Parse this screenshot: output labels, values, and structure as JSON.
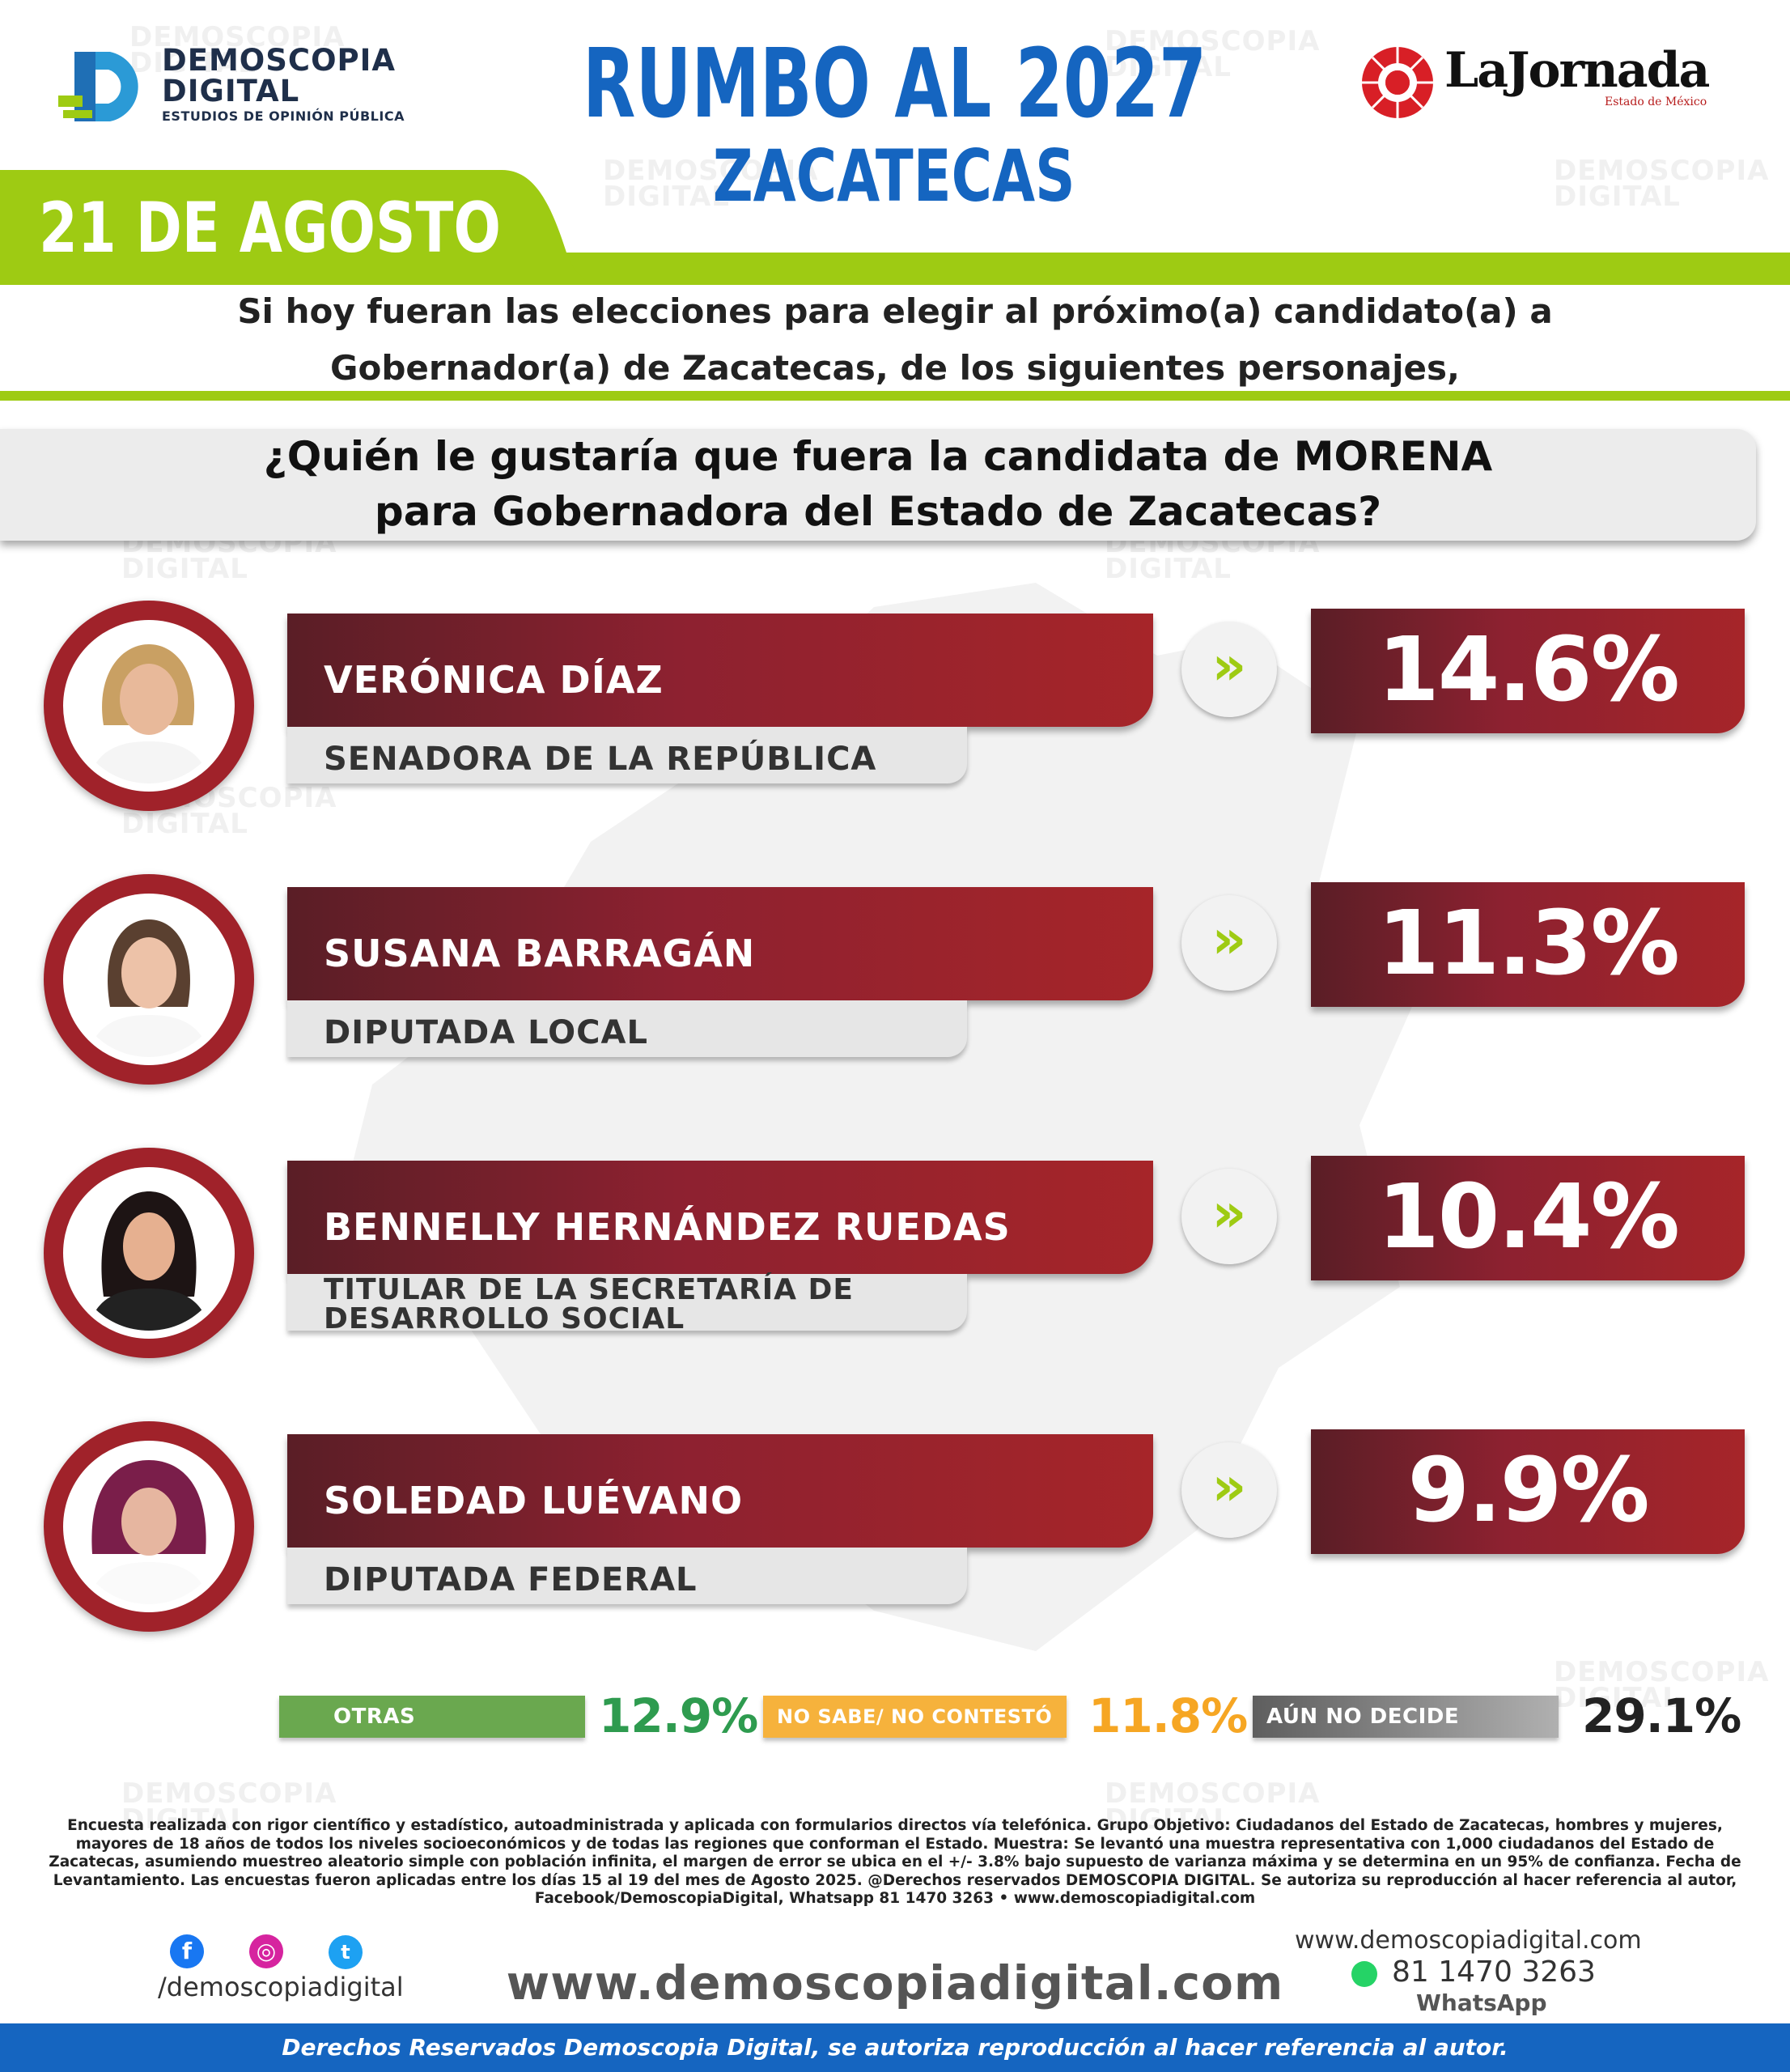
{
  "brand": {
    "name_line1": "DEMOSCOPIA",
    "name_line2": "DIGITAL",
    "tagline": "ESTUDIOS DE OPINIÓN PÚBLICA"
  },
  "partner": {
    "name": "LaJornada",
    "sub": "Estado de México"
  },
  "header": {
    "title": "RUMBO AL 2027",
    "subtitle": "ZACATECAS",
    "date": "21 DE AGOSTO"
  },
  "intro": {
    "line1": "Si hoy fueran las elecciones para elegir al próximo(a) candidato(a) a",
    "line2": "Gobernador(a) de Zacatecas, de los siguientes personajes,"
  },
  "question": {
    "line1": "¿Quién le gustaría que fuera la candidata de MORENA",
    "line2": "para Gobernadora del Estado de Zacatecas?"
  },
  "colors": {
    "brand_blue": "#1565c0",
    "accent_green": "#9ecb13",
    "bar_red": "#a62529",
    "bar_dark": "#5a1e26",
    "otras_green": "#6aa84f",
    "nosabe_orange": "#f6b23c",
    "nodecide_gray": "#6e6e6e"
  },
  "icons": {
    "arrow": "double-chevron-right-icon",
    "facebook": "facebook-icon",
    "instagram": "instagram-icon",
    "twitter": "twitter-icon",
    "whatsapp": "whatsapp-icon"
  },
  "chart_data": {
    "type": "bar",
    "categories": [
      "VERÓNICA DÍAZ",
      "SUSANA BARRAGÁN",
      "BENNELLY HERNÁNDEZ RUEDAS",
      "SOLEDAD LUÉVANO"
    ],
    "values": [
      14.6,
      11.3,
      10.4,
      9.9
    ],
    "labels": [
      "14.6%",
      "11.3%",
      "10.4%",
      "9.9%"
    ],
    "roles": [
      "SENADORA DE LA REPÚBLICA",
      "DIPUTADA LOCAL",
      "TITULAR DE LA SECRETARÍA DE DESARROLLO SOCIAL",
      "DIPUTADA FEDERAL"
    ],
    "extra": [
      {
        "label": "OTRAS",
        "value": 12.9,
        "text": "12.9%"
      },
      {
        "label": "NO SABE/ NO CONTESTÓ",
        "value": 11.8,
        "text": "11.8%"
      },
      {
        "label": "AÚN NO DECIDE",
        "value": 29.1,
        "text": "29.1%"
      }
    ],
    "unit": "%"
  },
  "methodology": "Encuesta realizada con rigor científico y estadístico, autoadministrada y aplicada con formularios directos vía telefónica. Grupo Objetivo: Ciudadanos del Estado de Zacatecas, hombres y mujeres, mayores de 18 años de todos los niveles socioeconómicos y de todas las regiones que conforman el Estado. Muestra: Se levantó una muestra representativa con 1,000 ciudadanos del Estado de Zacatecas, asumiendo muestreo aleatorio simple con población infinita, el margen de error se ubica en el +/- 3.8% bajo supuesto de varianza máxima y se determina en un 95% de confianza. Fecha de Levantamiento. Las encuestas fueron aplicadas entre los días 15 al 19 del mes de Agosto 2025. @Derechos reservados DEMOSCOPIA DIGITAL. Se autoriza su reproducción al hacer referencia al autor, Facebook/DemoscopiaDigital, Whatsapp 81 1470 3263 • www.demoscopiadigital.com",
  "footer": {
    "handle": "/demoscopiadigital",
    "url_big": "www.demoscopiadigital.com",
    "url_small": "www.demoscopiadigital.com",
    "phone": "81 1470 3263",
    "whatsapp_label": "WhatsApp",
    "rights": "Derechos Reservados Demoscopia Digital, se autoriza reproducción al hacer referencia al autor."
  }
}
